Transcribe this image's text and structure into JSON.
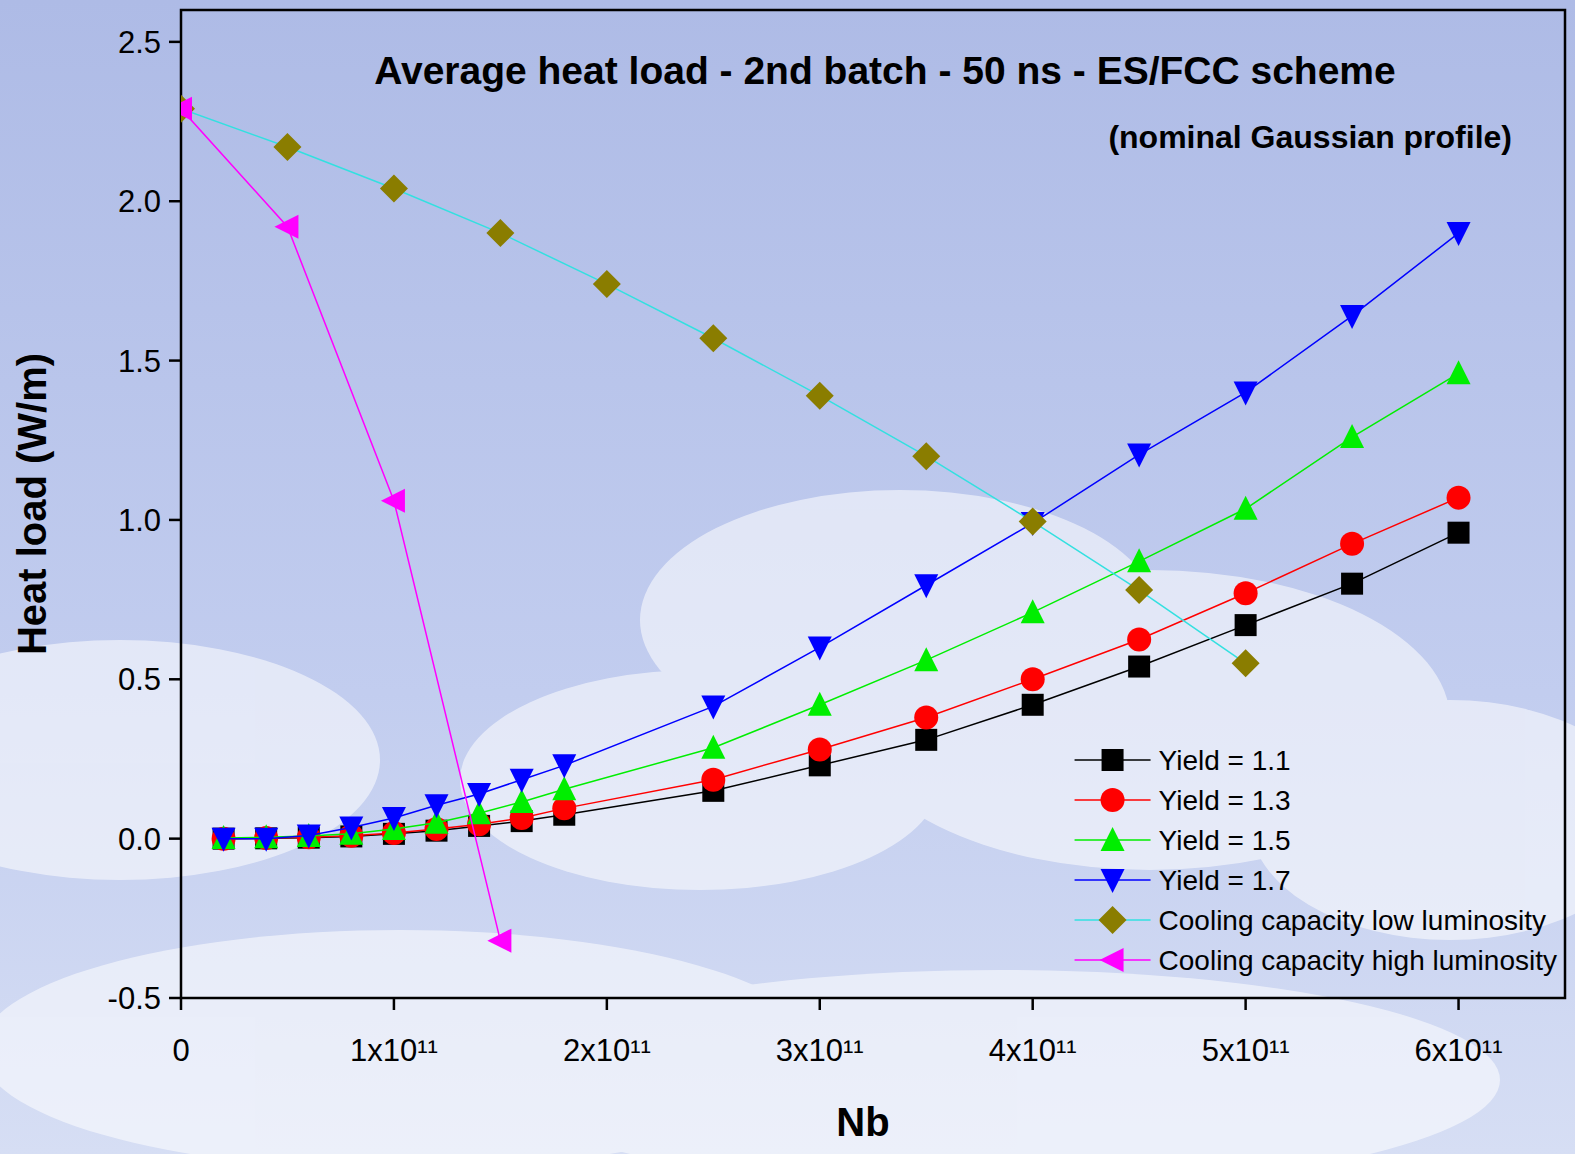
{
  "chart_data": {
    "type": "line",
    "title": "Average heat load - 2nd batch - 50 ns - ES/FCC scheme",
    "subtitle": "(nominal Gaussian profile)",
    "x_label": "Nb",
    "y_label": "Heat load (W/m)",
    "xlim": [
      0,
      650000000000
    ],
    "ylim": [
      -0.5,
      2.6
    ],
    "xticks": [
      0,
      {
        "value": 100000000000,
        "label": "1x10¹¹"
      },
      {
        "value": 200000000000,
        "label": "2x10¹¹"
      },
      {
        "value": 300000000000,
        "label": "3x10¹¹"
      },
      {
        "value": 400000000000,
        "label": "4x10¹¹"
      },
      {
        "value": 500000000000,
        "label": "5x10¹¹"
      },
      {
        "value": 600000000000,
        "label": "6x10¹¹"
      }
    ],
    "yticks": [
      -0.5,
      {
        "value": 0,
        "label": "0.0"
      },
      0.5,
      {
        "value": 1,
        "label": "1.0"
      },
      1.5,
      {
        "value": 2,
        "label": "2.0"
      },
      2.5
    ],
    "grid": false,
    "legend": "lower right",
    "series": [
      {
        "name": "Yield = 1.1",
        "color": "#000000",
        "marker": "square",
        "x": [
          20000000000,
          40000000000,
          60000000000,
          80000000000,
          100000000000,
          120000000000,
          140000000000,
          160000000000,
          180000000000,
          250000000000,
          300000000000,
          350000000000,
          400000000000,
          450000000000,
          500000000000,
          550000000000,
          600000000000
        ],
        "values": [
          0,
          0.001,
          0.003,
          0.007,
          0.015,
          0.025,
          0.04,
          0.055,
          0.075,
          0.15,
          0.23,
          0.31,
          0.42,
          0.54,
          0.67,
          0.8,
          0.96
        ]
      },
      {
        "name": "Yield = 1.3",
        "color": "#ff0000",
        "marker": "circle",
        "x": [
          20000000000,
          40000000000,
          60000000000,
          80000000000,
          100000000000,
          120000000000,
          140000000000,
          160000000000,
          180000000000,
          250000000000,
          300000000000,
          350000000000,
          400000000000,
          450000000000,
          500000000000,
          550000000000,
          600000000000
        ],
        "values": [
          0,
          0.002,
          0.004,
          0.009,
          0.018,
          0.03,
          0.045,
          0.065,
          0.095,
          0.185,
          0.28,
          0.38,
          0.5,
          0.625,
          0.77,
          0.925,
          1.07
        ]
      },
      {
        "name": "Yield = 1.5",
        "color": "#00ee00",
        "marker": "triangle-up",
        "x": [
          20000000000,
          40000000000,
          60000000000,
          80000000000,
          100000000000,
          120000000000,
          140000000000,
          160000000000,
          180000000000,
          250000000000,
          300000000000,
          350000000000,
          400000000000,
          450000000000,
          500000000000,
          550000000000,
          600000000000
        ],
        "values": [
          0.002,
          0.004,
          0.008,
          0.015,
          0.03,
          0.05,
          0.08,
          0.115,
          0.155,
          0.285,
          0.42,
          0.56,
          0.71,
          0.87,
          1.035,
          1.26,
          1.46
        ]
      },
      {
        "name": "Yield = 1.7",
        "color": "#0000ff",
        "marker": "triangle-down",
        "x": [
          20000000000,
          40000000000,
          60000000000,
          80000000000,
          100000000000,
          120000000000,
          140000000000,
          160000000000,
          180000000000,
          250000000000,
          300000000000,
          350000000000,
          400000000000,
          450000000000,
          500000000000,
          550000000000,
          600000000000
        ],
        "values": [
          0,
          0,
          0.01,
          0.035,
          0.065,
          0.105,
          0.14,
          0.185,
          0.23,
          0.415,
          0.6,
          0.795,
          0.99,
          1.205,
          1.4,
          1.64,
          1.9
        ]
      },
      {
        "name": "Cooling capacity low luminosity",
        "color": "#33e0e0",
        "marker": "diamond",
        "colors": [
          "#8a7d00",
          "#8a7d00",
          "#8a7d00",
          "#8a7d00",
          "#8a7d00",
          "#8a7d00",
          "#8a7d00",
          "#8a7d00",
          "#8a7d00",
          "#8a7d00",
          "#8a7d00"
        ],
        "x": [
          0,
          50000000000,
          100000000000,
          150000000000,
          200000000000,
          250000000000,
          300000000000,
          350000000000,
          400000000000,
          450000000000,
          500000000000
        ],
        "values": [
          2.29,
          2.17,
          2.04,
          1.9,
          1.74,
          1.57,
          1.39,
          1.2,
          0.995,
          0.78,
          0.55
        ]
      },
      {
        "name": "Cooling capacity high luminosity",
        "color": "#ff00ff",
        "marker": "triangle-left",
        "x": [
          0,
          50000000000,
          100000000000,
          150000000000
        ],
        "values": [
          2.29,
          1.92,
          1.06,
          -0.32
        ]
      }
    ]
  }
}
